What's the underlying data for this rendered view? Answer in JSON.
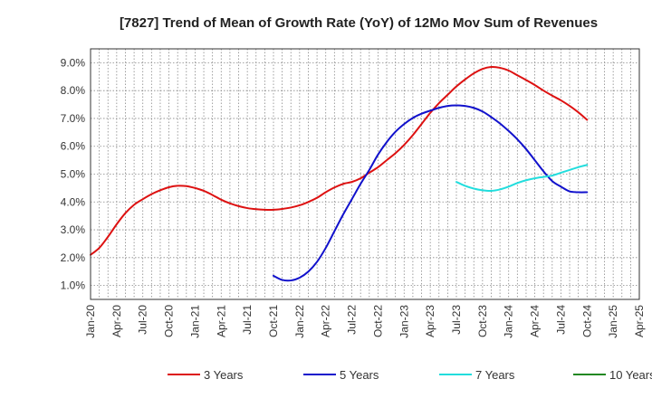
{
  "chart_data": {
    "type": "line",
    "title": "[7827]  Trend of Mean of Growth Rate (YoY) of 12Mo Mov Sum of Revenues",
    "xlabel": "",
    "ylabel": "",
    "ylim": [
      0.5,
      9.5
    ],
    "y_ticks": [
      1.0,
      2.0,
      3.0,
      4.0,
      5.0,
      6.0,
      7.0,
      8.0,
      9.0
    ],
    "y_tick_labels": [
      "1.0%",
      "2.0%",
      "3.0%",
      "4.0%",
      "5.0%",
      "6.0%",
      "7.0%",
      "8.0%",
      "9.0%"
    ],
    "x_range": [
      0,
      63
    ],
    "x_ticks": [
      0,
      3,
      6,
      9,
      12,
      15,
      18,
      21,
      24,
      27,
      30,
      33,
      36,
      39,
      42,
      45,
      48,
      51,
      54,
      57,
      60,
      63
    ],
    "x_tick_labels": [
      "Jan-20",
      "Apr-20",
      "Jul-20",
      "Oct-20",
      "Jan-21",
      "Apr-21",
      "Jul-21",
      "Oct-21",
      "Jan-22",
      "Apr-22",
      "Jul-22",
      "Oct-22",
      "Jan-23",
      "Apr-23",
      "Jul-23",
      "Oct-23",
      "Jan-24",
      "Apr-24",
      "Jul-24",
      "Oct-24",
      "Jan-25",
      "Apr-25"
    ],
    "grid": true,
    "legend_position": "bottom",
    "series": [
      {
        "name": "3 Years",
        "color": "#dd1111",
        "points": [
          [
            0,
            2.1
          ],
          [
            1,
            2.35
          ],
          [
            2,
            2.75
          ],
          [
            3,
            3.2
          ],
          [
            4,
            3.6
          ],
          [
            5,
            3.9
          ],
          [
            6,
            4.1
          ],
          [
            7,
            4.28
          ],
          [
            8,
            4.42
          ],
          [
            9,
            4.53
          ],
          [
            10,
            4.58
          ],
          [
            11,
            4.57
          ],
          [
            12,
            4.5
          ],
          [
            13,
            4.4
          ],
          [
            14,
            4.25
          ],
          [
            15,
            4.08
          ],
          [
            16,
            3.95
          ],
          [
            17,
            3.85
          ],
          [
            18,
            3.78
          ],
          [
            19,
            3.74
          ],
          [
            20,
            3.72
          ],
          [
            21,
            3.72
          ],
          [
            22,
            3.75
          ],
          [
            23,
            3.8
          ],
          [
            24,
            3.88
          ],
          [
            25,
            4.0
          ],
          [
            26,
            4.15
          ],
          [
            27,
            4.35
          ],
          [
            28,
            4.52
          ],
          [
            29,
            4.65
          ],
          [
            30,
            4.72
          ],
          [
            31,
            4.85
          ],
          [
            32,
            5.05
          ],
          [
            33,
            5.25
          ],
          [
            34,
            5.5
          ],
          [
            35,
            5.75
          ],
          [
            36,
            6.05
          ],
          [
            37,
            6.4
          ],
          [
            38,
            6.8
          ],
          [
            39,
            7.2
          ],
          [
            40,
            7.55
          ],
          [
            41,
            7.85
          ],
          [
            42,
            8.15
          ],
          [
            43,
            8.4
          ],
          [
            44,
            8.62
          ],
          [
            45,
            8.78
          ],
          [
            46,
            8.85
          ],
          [
            47,
            8.82
          ],
          [
            48,
            8.72
          ],
          [
            49,
            8.55
          ],
          [
            50,
            8.38
          ],
          [
            51,
            8.2
          ],
          [
            52,
            8.0
          ],
          [
            53,
            7.82
          ],
          [
            54,
            7.65
          ],
          [
            55,
            7.45
          ],
          [
            56,
            7.22
          ],
          [
            57,
            6.95
          ]
        ]
      },
      {
        "name": "5 Years",
        "color": "#1111cc",
        "points": [
          [
            21,
            1.35
          ],
          [
            22,
            1.2
          ],
          [
            23,
            1.18
          ],
          [
            24,
            1.28
          ],
          [
            25,
            1.5
          ],
          [
            26,
            1.85
          ],
          [
            27,
            2.35
          ],
          [
            28,
            2.95
          ],
          [
            29,
            3.55
          ],
          [
            30,
            4.1
          ],
          [
            31,
            4.65
          ],
          [
            32,
            5.15
          ],
          [
            33,
            5.7
          ],
          [
            34,
            6.15
          ],
          [
            35,
            6.52
          ],
          [
            36,
            6.8
          ],
          [
            37,
            7.02
          ],
          [
            38,
            7.17
          ],
          [
            39,
            7.28
          ],
          [
            40,
            7.38
          ],
          [
            41,
            7.45
          ],
          [
            42,
            7.47
          ],
          [
            43,
            7.45
          ],
          [
            44,
            7.38
          ],
          [
            45,
            7.25
          ],
          [
            46,
            7.05
          ],
          [
            47,
            6.82
          ],
          [
            48,
            6.55
          ],
          [
            49,
            6.25
          ],
          [
            50,
            5.9
          ],
          [
            51,
            5.5
          ],
          [
            52,
            5.1
          ],
          [
            53,
            4.75
          ],
          [
            54,
            4.55
          ],
          [
            55,
            4.38
          ],
          [
            56,
            4.35
          ],
          [
            57,
            4.35
          ]
        ]
      },
      {
        "name": "7 Years",
        "color": "#22dddd",
        "points": [
          [
            42,
            4.72
          ],
          [
            43,
            4.58
          ],
          [
            44,
            4.48
          ],
          [
            45,
            4.42
          ],
          [
            46,
            4.4
          ],
          [
            47,
            4.45
          ],
          [
            48,
            4.55
          ],
          [
            49,
            4.68
          ],
          [
            50,
            4.78
          ],
          [
            51,
            4.85
          ],
          [
            52,
            4.9
          ],
          [
            53,
            4.95
          ],
          [
            54,
            5.05
          ],
          [
            55,
            5.15
          ],
          [
            56,
            5.25
          ],
          [
            57,
            5.33
          ]
        ]
      },
      {
        "name": "10 Years",
        "color": "#228822",
        "points": []
      }
    ]
  }
}
